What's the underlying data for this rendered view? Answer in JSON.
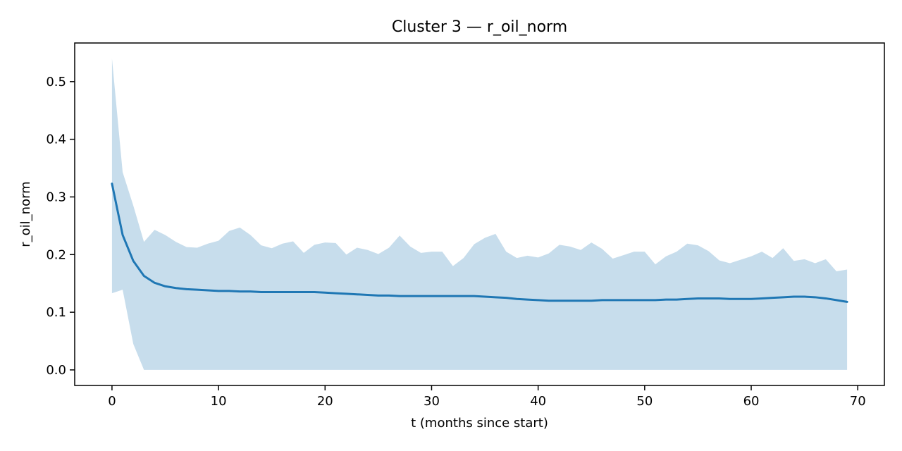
{
  "chart_data": {
    "type": "line",
    "title": "Cluster 3 — r_oil_norm",
    "xlabel": "t (months since start)",
    "ylabel": "r_oil_norm",
    "xlim": [
      -3.5,
      72.5
    ],
    "ylim": [
      -0.027,
      0.567
    ],
    "grid": false,
    "x_ticks": [
      0,
      10,
      20,
      30,
      40,
      50,
      60,
      70
    ],
    "y_ticks": [
      0.0,
      0.1,
      0.2,
      0.3,
      0.4,
      0.5
    ],
    "x_tick_labels": [
      "0",
      "10",
      "20",
      "30",
      "40",
      "50",
      "60",
      "70"
    ],
    "y_tick_labels": [
      "0.0",
      "0.1",
      "0.2",
      "0.3",
      "0.4",
      "0.5"
    ],
    "colors": {
      "line": "#1f77b4",
      "band": "#1f77b4",
      "band_opacity": 0.25
    },
    "x": [
      0,
      1,
      2,
      3,
      4,
      5,
      6,
      7,
      8,
      9,
      10,
      11,
      12,
      13,
      14,
      15,
      16,
      17,
      18,
      19,
      20,
      21,
      22,
      23,
      24,
      25,
      26,
      27,
      28,
      29,
      30,
      31,
      32,
      33,
      34,
      35,
      36,
      37,
      38,
      39,
      40,
      41,
      42,
      43,
      44,
      45,
      46,
      47,
      48,
      49,
      50,
      51,
      52,
      53,
      54,
      55,
      56,
      57,
      58,
      59,
      60,
      61,
      62,
      63,
      64,
      65,
      66,
      67,
      68,
      69
    ],
    "series": [
      {
        "values": [
          0.323,
          0.234,
          0.189,
          0.163,
          0.151,
          0.145,
          0.142,
          0.14,
          0.139,
          0.138,
          0.137,
          0.137,
          0.136,
          0.136,
          0.135,
          0.135,
          0.135,
          0.135,
          0.135,
          0.135,
          0.134,
          0.133,
          0.132,
          0.131,
          0.13,
          0.129,
          0.129,
          0.128,
          0.128,
          0.128,
          0.128,
          0.128,
          0.128,
          0.128,
          0.128,
          0.127,
          0.126,
          0.125,
          0.123,
          0.122,
          0.121,
          0.12,
          0.12,
          0.12,
          0.12,
          0.12,
          0.121,
          0.121,
          0.121,
          0.121,
          0.121,
          0.121,
          0.122,
          0.122,
          0.123,
          0.124,
          0.124,
          0.124,
          0.123,
          0.123,
          0.123,
          0.124,
          0.125,
          0.126,
          0.127,
          0.127,
          0.126,
          0.124,
          0.121,
          0.118
        ]
      }
    ],
    "band": {
      "upper": [
        0.54,
        0.343,
        0.285,
        0.222,
        0.243,
        0.234,
        0.222,
        0.213,
        0.212,
        0.219,
        0.224,
        0.241,
        0.247,
        0.234,
        0.216,
        0.211,
        0.219,
        0.223,
        0.203,
        0.217,
        0.221,
        0.22,
        0.2,
        0.212,
        0.208,
        0.201,
        0.212,
        0.233,
        0.214,
        0.203,
        0.205,
        0.205,
        0.18,
        0.194,
        0.218,
        0.229,
        0.236,
        0.205,
        0.194,
        0.198,
        0.195,
        0.202,
        0.217,
        0.214,
        0.208,
        0.221,
        0.21,
        0.193,
        0.199,
        0.205,
        0.205,
        0.183,
        0.197,
        0.205,
        0.219,
        0.216,
        0.206,
        0.19,
        0.185,
        0.191,
        0.197,
        0.205,
        0.194,
        0.211,
        0.189,
        0.192,
        0.185,
        0.192,
        0.171,
        0.174
      ],
      "lower": [
        0.133,
        0.139,
        0.045,
        0.0,
        0.0,
        0.0,
        0.0,
        0.0,
        0.0,
        0.0,
        0.0,
        0.0,
        0.0,
        0.0,
        0.0,
        0.0,
        0.0,
        0.0,
        0.0,
        0.0,
        0.0,
        0.0,
        0.0,
        0.0,
        0.0,
        0.0,
        0.0,
        0.0,
        0.0,
        0.0,
        0.0,
        0.0,
        0.0,
        0.0,
        0.0,
        0.0,
        0.0,
        0.0,
        0.0,
        0.0,
        0.0,
        0.0,
        0.0,
        0.0,
        0.0,
        0.0,
        0.0,
        0.0,
        0.0,
        0.0,
        0.0,
        0.0,
        0.0,
        0.0,
        0.0,
        0.0,
        0.0,
        0.0,
        0.0,
        0.0,
        0.0,
        0.0,
        0.0,
        0.0,
        0.0,
        0.0,
        0.0,
        0.0,
        0.0,
        0.0
      ]
    }
  }
}
